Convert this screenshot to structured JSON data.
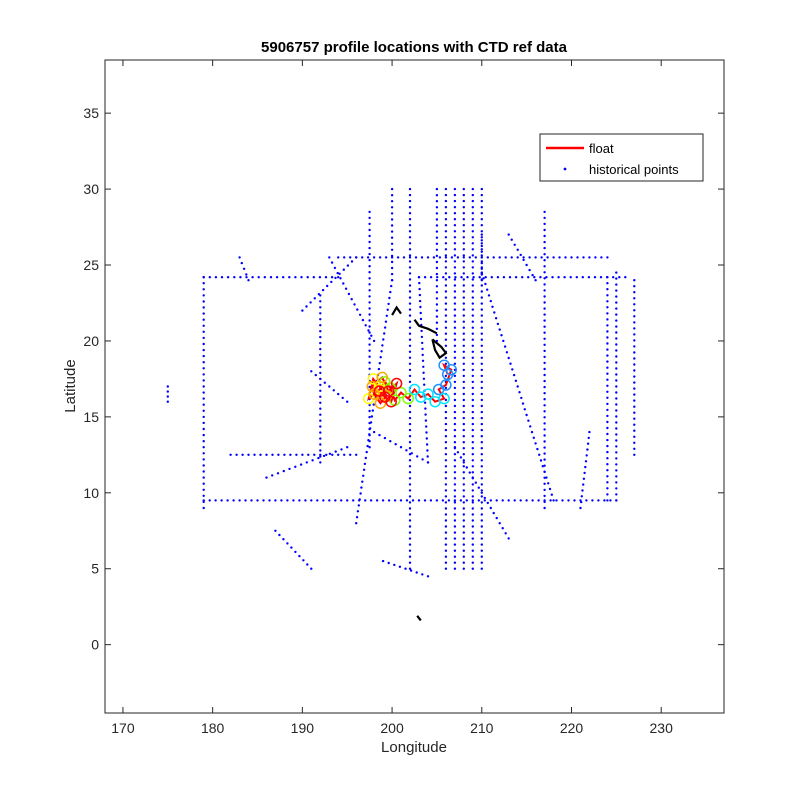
{
  "chart_data": {
    "type": "scatter",
    "title": "5906757 profile locations with CTD ref data",
    "xlabel": "Longitude",
    "ylabel": "Latitude",
    "xlim": [
      168,
      237
    ],
    "ylim": [
      -4.5,
      38.5
    ],
    "xticks": [
      170,
      180,
      190,
      200,
      210,
      220,
      230
    ],
    "yticks": [
      0,
      5,
      10,
      15,
      20,
      25,
      30,
      35
    ],
    "grid": false,
    "legend_position": "top-right",
    "legend": [
      {
        "label": "float",
        "color": "#ff0000",
        "style": "line"
      },
      {
        "label": "historical points",
        "color": "#0000ff",
        "style": "dots"
      }
    ],
    "historical_segments": [
      [
        [
          179,
          24.2
        ],
        [
          194,
          24.2
        ]
      ],
      [
        [
          194,
          25.5
        ],
        [
          224,
          25.5
        ]
      ],
      [
        [
          203,
          24.2
        ],
        [
          226,
          24.2
        ]
      ],
      [
        [
          179,
          24.2
        ],
        [
          179,
          9
        ]
      ],
      [
        [
          179,
          9.5
        ],
        [
          225,
          9.5
        ]
      ],
      [
        [
          182,
          12.5
        ],
        [
          196,
          12.5
        ]
      ],
      [
        [
          186,
          11
        ],
        [
          195,
          13
        ]
      ],
      [
        [
          192,
          12
        ],
        [
          192,
          23
        ]
      ],
      [
        [
          190,
          22
        ],
        [
          196,
          25.5
        ]
      ],
      [
        [
          193,
          25.5
        ],
        [
          198,
          20
        ]
      ],
      [
        [
          196,
          8
        ],
        [
          200,
          24
        ]
      ],
      [
        [
          197.5,
          28.5
        ],
        [
          197.5,
          13
        ]
      ],
      [
        [
          202,
          30
        ],
        [
          202,
          5
        ]
      ],
      [
        [
          200,
          30
        ],
        [
          200,
          24
        ]
      ],
      [
        [
          203,
          24.2
        ],
        [
          204,
          12
        ]
      ],
      [
        [
          205,
          30
        ],
        [
          205,
          20
        ]
      ],
      [
        [
          206,
          30
        ],
        [
          206,
          5
        ]
      ],
      [
        [
          207,
          30
        ],
        [
          207,
          5
        ]
      ],
      [
        [
          208,
          30
        ],
        [
          208,
          5
        ]
      ],
      [
        [
          209,
          30
        ],
        [
          209,
          5
        ]
      ],
      [
        [
          210,
          30
        ],
        [
          210,
          5
        ]
      ],
      [
        [
          210,
          27
        ],
        [
          210,
          24
        ]
      ],
      [
        [
          217,
          28.5
        ],
        [
          217,
          9
        ]
      ],
      [
        [
          221,
          9
        ],
        [
          222,
          14
        ]
      ],
      [
        [
          224,
          24.2
        ],
        [
          224,
          9.5
        ]
      ],
      [
        [
          225,
          24.5
        ],
        [
          225,
          9.5
        ]
      ],
      [
        [
          227,
          24
        ],
        [
          227,
          12.5
        ]
      ],
      [
        [
          213,
          27
        ],
        [
          216,
          24
        ]
      ],
      [
        [
          210,
          24.5
        ],
        [
          218,
          9.5
        ]
      ],
      [
        [
          207,
          13
        ],
        [
          213,
          7
        ]
      ],
      [
        [
          175,
          17
        ],
        [
          175,
          16
        ]
      ],
      [
        [
          187,
          7.5
        ],
        [
          191,
          5
        ]
      ],
      [
        [
          199,
          5.5
        ],
        [
          204,
          4.5
        ]
      ],
      [
        [
          183,
          25.5
        ],
        [
          184,
          24
        ]
      ],
      [
        [
          191,
          18
        ],
        [
          195,
          16
        ]
      ],
      [
        [
          198,
          14
        ],
        [
          204,
          12
        ]
      ]
    ],
    "islands": [
      [
        [
          200,
          21.7
        ],
        [
          200.5,
          22.2
        ],
        [
          201,
          21.8
        ]
      ],
      [
        [
          202.5,
          21.4
        ],
        [
          203,
          21.0
        ],
        [
          204,
          20.8
        ],
        [
          205,
          20.5
        ]
      ],
      [
        [
          204.5,
          20.1
        ],
        [
          205.5,
          19.6
        ],
        [
          206,
          19.2
        ],
        [
          205.3,
          18.9
        ],
        [
          204.8,
          19.4
        ],
        [
          204.5,
          20.1
        ]
      ],
      [
        [
          202.8,
          1.9
        ],
        [
          203.2,
          1.6
        ]
      ]
    ],
    "float_track": [
      [
        206.2,
        17.8
      ],
      [
        205.8,
        18.4
      ],
      [
        206.6,
        18.1
      ],
      [
        206.0,
        17.1
      ],
      [
        205.2,
        16.8
      ],
      [
        205.8,
        16.2
      ],
      [
        204.8,
        16.0
      ],
      [
        204.0,
        16.5
      ],
      [
        203.2,
        16.3
      ],
      [
        202.5,
        16.8
      ],
      [
        201.8,
        16.2
      ],
      [
        201.0,
        16.6
      ],
      [
        200.3,
        16.1
      ],
      [
        199.8,
        16.9
      ],
      [
        199.2,
        17.3
      ],
      [
        198.6,
        16.8
      ],
      [
        198.0,
        16.5
      ],
      [
        197.4,
        16.2
      ],
      [
        197.9,
        17.5
      ],
      [
        198.6,
        17.0
      ],
      [
        199.4,
        16.4
      ],
      [
        198.7,
        15.9
      ],
      [
        198.0,
        16.5
      ],
      [
        197.8,
        17.0
      ],
      [
        198.9,
        17.6
      ],
      [
        199.6,
        16.7
      ],
      [
        200.5,
        17.2
      ],
      [
        199.9,
        16.0
      ],
      [
        199.2,
        16.3
      ],
      [
        198.6,
        16.7
      ]
    ],
    "float_color_stops": [
      "#1e90ff",
      "#00e5ff",
      "#7fff00",
      "#ffff00",
      "#ffa500",
      "#ff0000"
    ]
  }
}
